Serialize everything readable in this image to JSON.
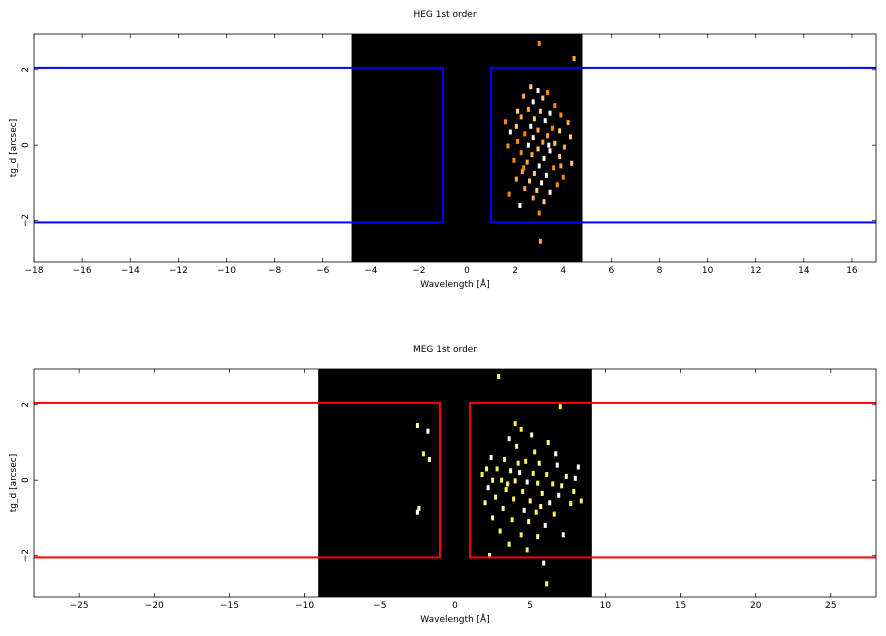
{
  "chart_data": [
    {
      "type": "heatmap",
      "title": "HEG 1st order",
      "xlabel": "Wavelength [Å]",
      "ylabel": "tg_d [arcsec]",
      "xlim": [
        -18,
        17
      ],
      "ylim": [
        -3.1,
        2.95
      ],
      "xticks": [
        -18,
        -16,
        -14,
        -12,
        -10,
        -8,
        -6,
        -4,
        -2,
        0,
        2,
        4,
        6,
        8,
        10,
        12,
        14,
        16
      ],
      "yticks": [
        -2,
        0,
        2
      ],
      "image_region": {
        "x": [
          -4.8,
          4.8
        ],
        "y": [
          -3.1,
          2.95
        ],
        "color": "#000000"
      },
      "region_color": "#0000ff",
      "regions": [
        {
          "x": [
            -30,
            -1.0
          ],
          "y": [
            -2.05,
            2.05
          ]
        },
        {
          "x": [
            1.0,
            30
          ],
          "y": [
            -2.05,
            2.05
          ]
        }
      ],
      "events": [
        {
          "x": 3.0,
          "y": 2.7
        },
        {
          "x": 4.45,
          "y": 2.3
        },
        {
          "x": 2.65,
          "y": 1.55
        },
        {
          "x": 2.95,
          "y": 1.45
        },
        {
          "x": 3.35,
          "y": 1.4
        },
        {
          "x": 2.35,
          "y": 1.3
        },
        {
          "x": 3.15,
          "y": 1.25
        },
        {
          "x": 2.75,
          "y": 1.15
        },
        {
          "x": 3.65,
          "y": 1.05
        },
        {
          "x": 2.55,
          "y": 0.95
        },
        {
          "x": 3.05,
          "y": 0.9
        },
        {
          "x": 3.45,
          "y": 0.85
        },
        {
          "x": 3.9,
          "y": 0.8
        },
        {
          "x": 2.25,
          "y": 0.75
        },
        {
          "x": 2.8,
          "y": 0.7
        },
        {
          "x": 3.25,
          "y": 0.65
        },
        {
          "x": 1.6,
          "y": 0.62
        },
        {
          "x": 4.2,
          "y": 0.6
        },
        {
          "x": 2.05,
          "y": 0.5
        },
        {
          "x": 2.65,
          "y": 0.5
        },
        {
          "x": 3.55,
          "y": 0.45
        },
        {
          "x": 2.95,
          "y": 0.4
        },
        {
          "x": 3.85,
          "y": 0.38
        },
        {
          "x": 1.8,
          "y": 0.35
        },
        {
          "x": 2.4,
          "y": 0.3
        },
        {
          "x": 3.35,
          "y": 0.25
        },
        {
          "x": 4.3,
          "y": 0.22
        },
        {
          "x": 2.75,
          "y": 0.2
        },
        {
          "x": 2.1,
          "y": 0.1
        },
        {
          "x": 3.15,
          "y": 0.08
        },
        {
          "x": 3.65,
          "y": 0.05
        },
        {
          "x": 2.55,
          "y": 0.0
        },
        {
          "x": 1.7,
          "y": -0.02
        },
        {
          "x": 4.05,
          "y": -0.05
        },
        {
          "x": 2.95,
          "y": -0.1
        },
        {
          "x": 3.45,
          "y": -0.15
        },
        {
          "x": 2.25,
          "y": -0.2
        },
        {
          "x": 2.7,
          "y": -0.25
        },
        {
          "x": 3.85,
          "y": -0.3
        },
        {
          "x": 3.2,
          "y": -0.35
        },
        {
          "x": 1.95,
          "y": -0.4
        },
        {
          "x": 2.5,
          "y": -0.45
        },
        {
          "x": 4.35,
          "y": -0.48
        },
        {
          "x": 3.0,
          "y": -0.55
        },
        {
          "x": 3.6,
          "y": -0.6
        },
        {
          "x": 2.3,
          "y": -0.7
        },
        {
          "x": 2.8,
          "y": -0.75
        },
        {
          "x": 3.3,
          "y": -0.8
        },
        {
          "x": 4.0,
          "y": -0.85
        },
        {
          "x": 2.05,
          "y": -0.9
        },
        {
          "x": 2.6,
          "y": -0.95
        },
        {
          "x": 3.1,
          "y": -1.0
        },
        {
          "x": 3.75,
          "y": -1.05
        },
        {
          "x": 2.4,
          "y": -1.15
        },
        {
          "x": 2.9,
          "y": -1.2
        },
        {
          "x": 3.45,
          "y": -1.25
        },
        {
          "x": 1.75,
          "y": -1.3
        },
        {
          "x": 2.75,
          "y": -1.4
        },
        {
          "x": 3.2,
          "y": -1.5
        },
        {
          "x": 2.2,
          "y": -1.6
        },
        {
          "x": 3.0,
          "y": -1.8
        },
        {
          "x": 3.05,
          "y": -2.55
        },
        {
          "x": 2.1,
          "y": 0.9
        },
        {
          "x": 3.4,
          "y": 0.0
        },
        {
          "x": 2.35,
          "y": -0.6
        },
        {
          "x": 3.9,
          "y": -0.55
        }
      ],
      "event_colors": [
        "#ff8c00",
        "#ffa64d",
        "#ffcc80",
        "#ffffff"
      ]
    },
    {
      "type": "heatmap",
      "title": "MEG 1st order",
      "xlabel": "Wavelength [Å]",
      "ylabel": "tg_d [arcsec]",
      "xlim": [
        -28,
        28
      ],
      "ylim": [
        -3.1,
        2.95
      ],
      "xticks": [
        -25,
        -20,
        -15,
        -10,
        -5,
        0,
        5,
        10,
        15,
        20,
        25
      ],
      "yticks": [
        -2,
        0,
        2
      ],
      "image_region": {
        "x": [
          -9.1,
          9.1
        ],
        "y": [
          -3.1,
          2.95
        ],
        "color": "#000000"
      },
      "region_color": "#ff0000",
      "regions": [
        {
          "x": [
            -40,
            -1.0
          ],
          "y": [
            -2.05,
            2.05
          ]
        },
        {
          "x": [
            1.0,
            40
          ],
          "y": [
            -2.05,
            2.05
          ]
        }
      ],
      "events": [
        {
          "x": 2.9,
          "y": 2.75
        },
        {
          "x": 7.0,
          "y": 1.95
        },
        {
          "x": -2.5,
          "y": 1.45
        },
        {
          "x": -1.8,
          "y": 1.3
        },
        {
          "x": 4.0,
          "y": 1.5
        },
        {
          "x": 4.4,
          "y": 1.35
        },
        {
          "x": 5.1,
          "y": 1.2
        },
        {
          "x": 3.6,
          "y": 1.1
        },
        {
          "x": 6.2,
          "y": 1.0
        },
        {
          "x": -2.1,
          "y": 0.7
        },
        {
          "x": -1.7,
          "y": 0.55
        },
        {
          "x": 2.4,
          "y": 0.6
        },
        {
          "x": 3.3,
          "y": 0.55
        },
        {
          "x": 4.7,
          "y": 0.5
        },
        {
          "x": 5.6,
          "y": 0.45
        },
        {
          "x": 6.8,
          "y": 0.4
        },
        {
          "x": 2.1,
          "y": 0.3
        },
        {
          "x": 2.8,
          "y": 0.3
        },
        {
          "x": 3.7,
          "y": 0.25
        },
        {
          "x": 4.3,
          "y": 0.2
        },
        {
          "x": 5.2,
          "y": 0.18
        },
        {
          "x": 6.1,
          "y": 0.15
        },
        {
          "x": 7.4,
          "y": 0.1
        },
        {
          "x": 8.0,
          "y": 0.05
        },
        {
          "x": 2.5,
          "y": 0.0
        },
        {
          "x": 3.1,
          "y": 0.0
        },
        {
          "x": 4.0,
          "y": -0.02
        },
        {
          "x": 4.8,
          "y": -0.05
        },
        {
          "x": 5.5,
          "y": -0.08
        },
        {
          "x": 6.5,
          "y": -0.1
        },
        {
          "x": 7.1,
          "y": -0.15
        },
        {
          "x": 2.2,
          "y": -0.2
        },
        {
          "x": 3.4,
          "y": -0.25
        },
        {
          "x": 4.5,
          "y": -0.3
        },
        {
          "x": 5.8,
          "y": -0.35
        },
        {
          "x": 6.9,
          "y": -0.4
        },
        {
          "x": 2.7,
          "y": -0.45
        },
        {
          "x": 3.9,
          "y": -0.5
        },
        {
          "x": 5.0,
          "y": -0.55
        },
        {
          "x": 6.3,
          "y": -0.6
        },
        {
          "x": 7.7,
          "y": -0.62
        },
        {
          "x": 8.4,
          "y": -0.55
        },
        {
          "x": 3.2,
          "y": -0.75
        },
        {
          "x": 4.6,
          "y": -0.8
        },
        {
          "x": 5.4,
          "y": -0.85
        },
        {
          "x": 6.6,
          "y": -0.9
        },
        {
          "x": -2.4,
          "y": -0.75
        },
        {
          "x": -2.5,
          "y": -0.85
        },
        {
          "x": 2.5,
          "y": -1.0
        },
        {
          "x": 3.8,
          "y": -1.05
        },
        {
          "x": 4.9,
          "y": -1.1
        },
        {
          "x": 6.0,
          "y": -1.2
        },
        {
          "x": 3.0,
          "y": -1.35
        },
        {
          "x": 4.4,
          "y": -1.45
        },
        {
          "x": 5.5,
          "y": -1.5
        },
        {
          "x": 7.2,
          "y": -1.45
        },
        {
          "x": 3.6,
          "y": -1.7
        },
        {
          "x": 4.8,
          "y": -1.85
        },
        {
          "x": 2.3,
          "y": -2.0
        },
        {
          "x": 5.9,
          "y": -2.2
        },
        {
          "x": 6.1,
          "y": -2.75
        },
        {
          "x": 1.8,
          "y": 0.15
        },
        {
          "x": 2.0,
          "y": -0.6
        },
        {
          "x": 8.2,
          "y": 0.35
        },
        {
          "x": 7.9,
          "y": -0.3
        },
        {
          "x": 5.3,
          "y": 0.75
        },
        {
          "x": 4.1,
          "y": 0.9
        },
        {
          "x": 6.7,
          "y": 0.7
        },
        {
          "x": 3.5,
          "y": -0.1
        },
        {
          "x": 4.2,
          "y": 0.45
        },
        {
          "x": 5.7,
          "y": -0.7
        }
      ],
      "event_colors": [
        "#ffff66",
        "#ffee55",
        "#ffffaa",
        "#ffffff"
      ]
    }
  ]
}
